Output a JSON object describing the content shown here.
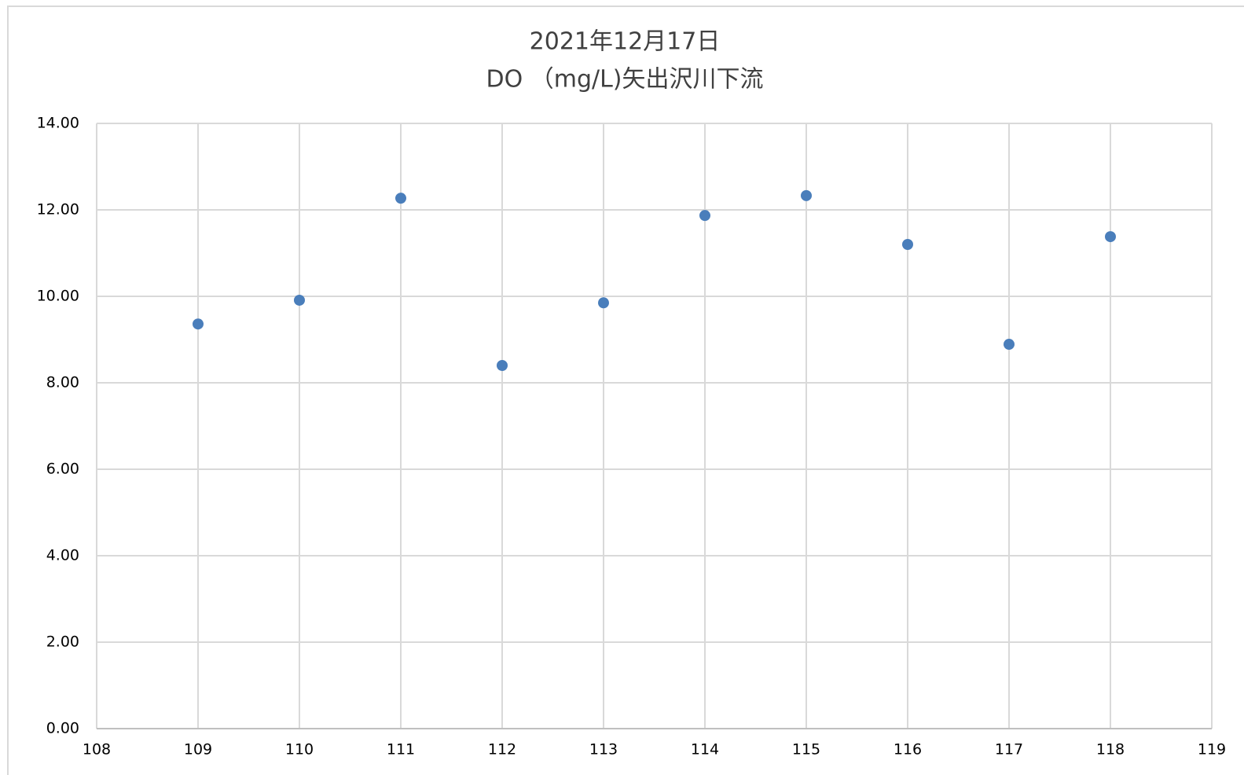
{
  "chart_data": {
    "type": "scatter",
    "title": [
      "2021年12月17日",
      "DO （mg/L)矢出沢川下流"
    ],
    "series": [
      {
        "name": "DO",
        "color": "#4a7ebb",
        "x": [
          109,
          110,
          111,
          112,
          113,
          114,
          115,
          116,
          117,
          118
        ],
        "values": [
          9.36,
          9.91,
          12.27,
          8.4,
          9.85,
          11.87,
          12.33,
          11.2,
          8.89,
          11.38
        ]
      }
    ],
    "xlim": [
      108,
      119
    ],
    "xticks": [
      108,
      109,
      110,
      111,
      112,
      113,
      114,
      115,
      116,
      117,
      118,
      119
    ],
    "ylim": [
      0,
      14
    ],
    "yticks": [
      {
        "value": 0,
        "label": "0.00"
      },
      {
        "value": 2,
        "label": "2.00"
      },
      {
        "value": 4,
        "label": "4.00"
      },
      {
        "value": 6,
        "label": "6.00"
      },
      {
        "value": 8,
        "label": "8.00"
      },
      {
        "value": 10,
        "label": "10.00"
      },
      {
        "value": 12,
        "label": "12.00"
      },
      {
        "value": 14,
        "label": "14.00"
      }
    ],
    "grid": true
  }
}
